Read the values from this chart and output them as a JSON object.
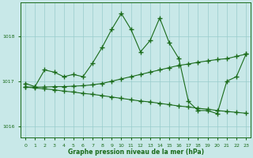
{
  "background_color": "#c8e8e8",
  "grid_color": "#99cccc",
  "line_color": "#1a6b1a",
  "xlabel": "Graphe pression niveau de la mer (hPa)",
  "ylim_low": 1015.75,
  "ylim_high": 1018.75,
  "yticks": [
    1016,
    1017,
    1018
  ],
  "y_main": [
    1016.95,
    1016.88,
    1017.25,
    1017.2,
    1017.1,
    1017.15,
    1017.1,
    1017.4,
    1017.75,
    1018.15,
    1018.5,
    1018.15,
    1017.65,
    1017.9,
    1018.4,
    1017.85,
    1017.5,
    1016.55,
    1016.35,
    1016.35,
    1016.28,
    1017.0,
    1017.1,
    1017.6
  ],
  "y_rise": [
    1016.87,
    1016.87,
    1016.87,
    1016.88,
    1016.88,
    1016.89,
    1016.9,
    1016.92,
    1016.95,
    1017.0,
    1017.05,
    1017.1,
    1017.15,
    1017.2,
    1017.25,
    1017.3,
    1017.35,
    1017.38,
    1017.42,
    1017.45,
    1017.48,
    1017.5,
    1017.55,
    1017.6
  ],
  "y_decline": [
    1016.87,
    1016.85,
    1016.83,
    1016.81,
    1016.78,
    1016.76,
    1016.73,
    1016.71,
    1016.68,
    1016.65,
    1016.62,
    1016.59,
    1016.56,
    1016.54,
    1016.51,
    1016.48,
    1016.45,
    1016.43,
    1016.4,
    1016.38,
    1016.35,
    1016.33,
    1016.31,
    1016.29
  ]
}
